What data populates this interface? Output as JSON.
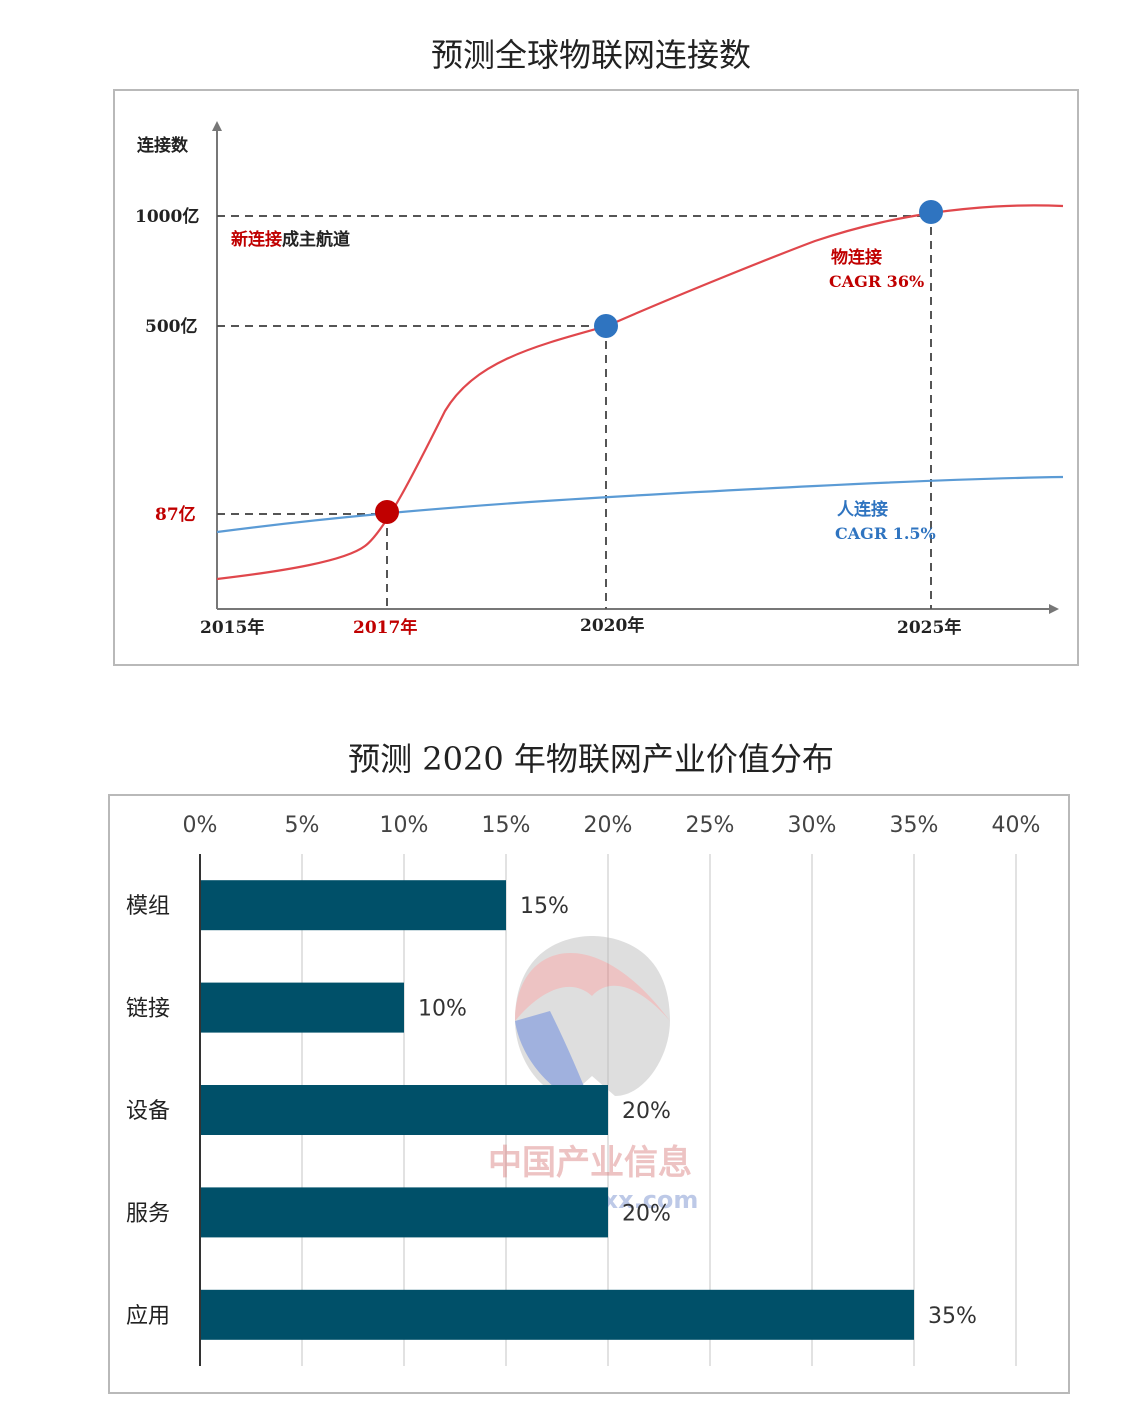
{
  "chart1": {
    "title": "预测全球物联网连接数",
    "y_axis_label": "连接数",
    "y_ticks": [
      "1000亿",
      "500亿",
      "87亿"
    ],
    "x_ticks": [
      "2015年",
      "2017年",
      "2020年",
      "2025年"
    ],
    "annotation_new": "新连接成主航道",
    "annotation_new_highlight": "新连接",
    "annotation_new_rest": "成主航道",
    "thing_label": "物连接",
    "thing_cagr": "CAGR 36%",
    "people_label": "人连接",
    "people_cagr": "CAGR 1.5%",
    "colors": {
      "thing": "#e0474c",
      "people": "#5b9bd5",
      "marker_blue": "#2f74c0",
      "marker_red": "#c00000"
    }
  },
  "chart_data": [
    {
      "type": "line",
      "title": "预测全球物联网连接数",
      "ylabel": "连接数",
      "x": [
        "2015年",
        "2017年",
        "2020年",
        "2025年"
      ],
      "series": [
        {
          "name": "物连接",
          "values": [
            2,
            87,
            500,
            1000
          ]
        },
        {
          "name": "人连接",
          "values": [
            70,
            87,
            110,
            140
          ]
        }
      ],
      "annotations": [
        "新连接成主航道",
        "CAGR 36%",
        "CAGR 1.5%"
      ]
    },
    {
      "type": "bar",
      "orientation": "horizontal",
      "title": "预测 2020 年物联网产业价值分布",
      "categories": [
        "模组",
        "链接",
        "设备",
        "服务",
        "应用"
      ],
      "values": [
        15,
        10,
        20,
        20,
        35
      ],
      "value_labels": [
        "15%",
        "10%",
        "20%",
        "20%",
        "35%"
      ],
      "xlim": [
        0,
        40
      ],
      "x_ticks": [
        "0%",
        "5%",
        "10%",
        "15%",
        "20%",
        "25%",
        "30%",
        "35%",
        "40%"
      ],
      "bar_color": "#005069",
      "grid": true
    }
  ],
  "chart2": {
    "title": "预测 2020 年物联网产业价值分布",
    "watermark_cn": "中国产业信息",
    "watermark_url": "www.chyxx.com"
  }
}
